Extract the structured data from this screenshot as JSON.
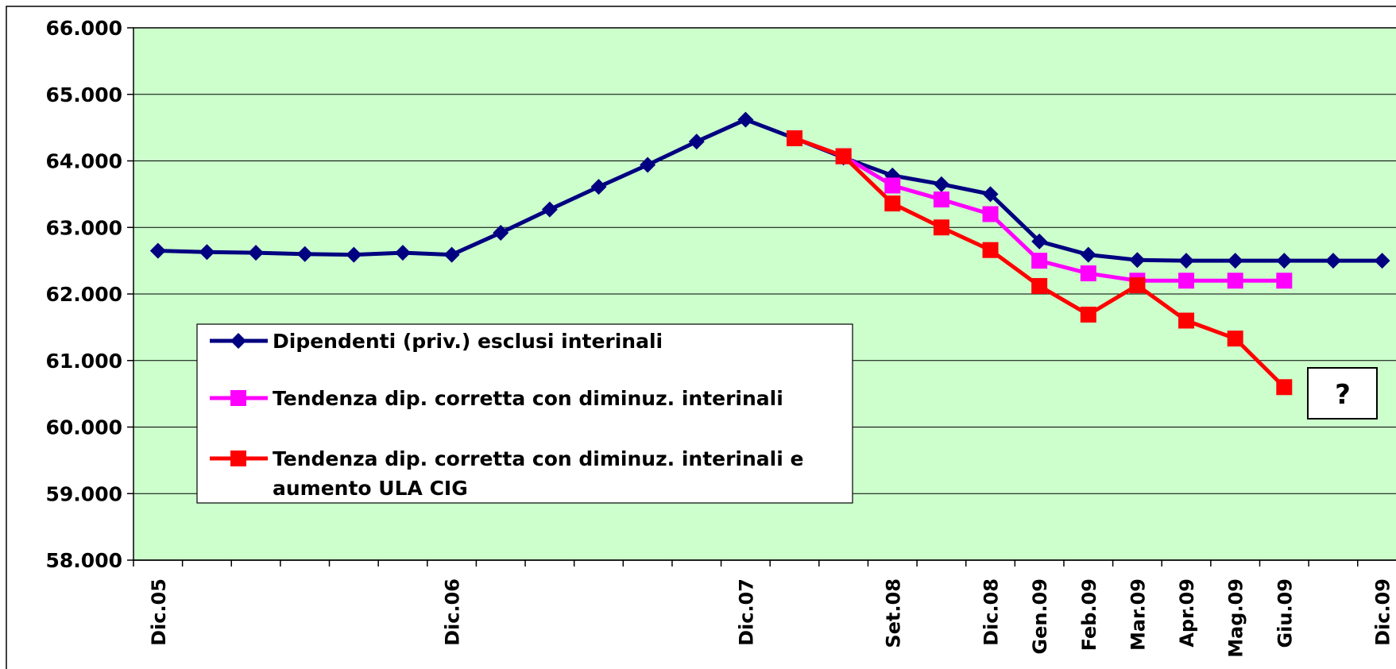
{
  "chart_data": {
    "type": "line",
    "categories": [
      "Dic.05",
      null,
      null,
      null,
      null,
      null,
      "Dic.06",
      null,
      null,
      null,
      null,
      null,
      "Dic.07",
      null,
      null,
      "Set.08",
      null,
      "Dic.08",
      "Gen.09",
      "Feb.09",
      "Mar.09",
      "Apr.09",
      "Mag.09",
      "Giu.09",
      null,
      "Dic.09"
    ],
    "series": [
      {
        "name": "Dipendenti (priv.) esclusi interinali",
        "color": "#000080",
        "marker": "diamond",
        "values": [
          62650,
          62630,
          62620,
          62600,
          62590,
          62620,
          62590,
          62920,
          63270,
          63610,
          63940,
          64290,
          64620,
          64340,
          64050,
          63780,
          63650,
          63500,
          62790,
          62590,
          62510,
          62500,
          62500,
          62500,
          62500,
          62500
        ]
      },
      {
        "name": "Tendenza dip. corretta con diminuz. interinali",
        "color": "#ff00ff",
        "marker": "square",
        "values": [
          null,
          null,
          null,
          null,
          null,
          null,
          null,
          null,
          null,
          null,
          null,
          null,
          null,
          64340,
          64070,
          63630,
          63420,
          63200,
          62500,
          62310,
          62200,
          62200,
          62200,
          62200,
          null,
          null
        ]
      },
      {
        "name": "Tendenza dip. corretta con diminuz. interinali e aumento ULA CIG",
        "color": "#ff0000",
        "marker": "square",
        "values": [
          null,
          null,
          null,
          null,
          null,
          null,
          null,
          null,
          null,
          null,
          null,
          null,
          null,
          64340,
          64070,
          63360,
          63000,
          62660,
          62120,
          61690,
          62130,
          61600,
          61330,
          60600,
          null,
          null
        ]
      }
    ],
    "ylim": [
      58000,
      66000
    ],
    "yticks": [
      {
        "value": 58000,
        "label": "58.000"
      },
      {
        "value": 59000,
        "label": "59.000"
      },
      {
        "value": 60000,
        "label": "60.000"
      },
      {
        "value": 61000,
        "label": "61.000"
      },
      {
        "value": 62000,
        "label": "62.000"
      },
      {
        "value": 63000,
        "label": "63.000"
      },
      {
        "value": 64000,
        "label": "64.000"
      },
      {
        "value": 65000,
        "label": "65.000"
      },
      {
        "value": 66000,
        "label": "66.000"
      }
    ],
    "grid": true,
    "legend": "inside-left",
    "plot_background": "#ccffcc",
    "annotations": [
      "?"
    ]
  }
}
